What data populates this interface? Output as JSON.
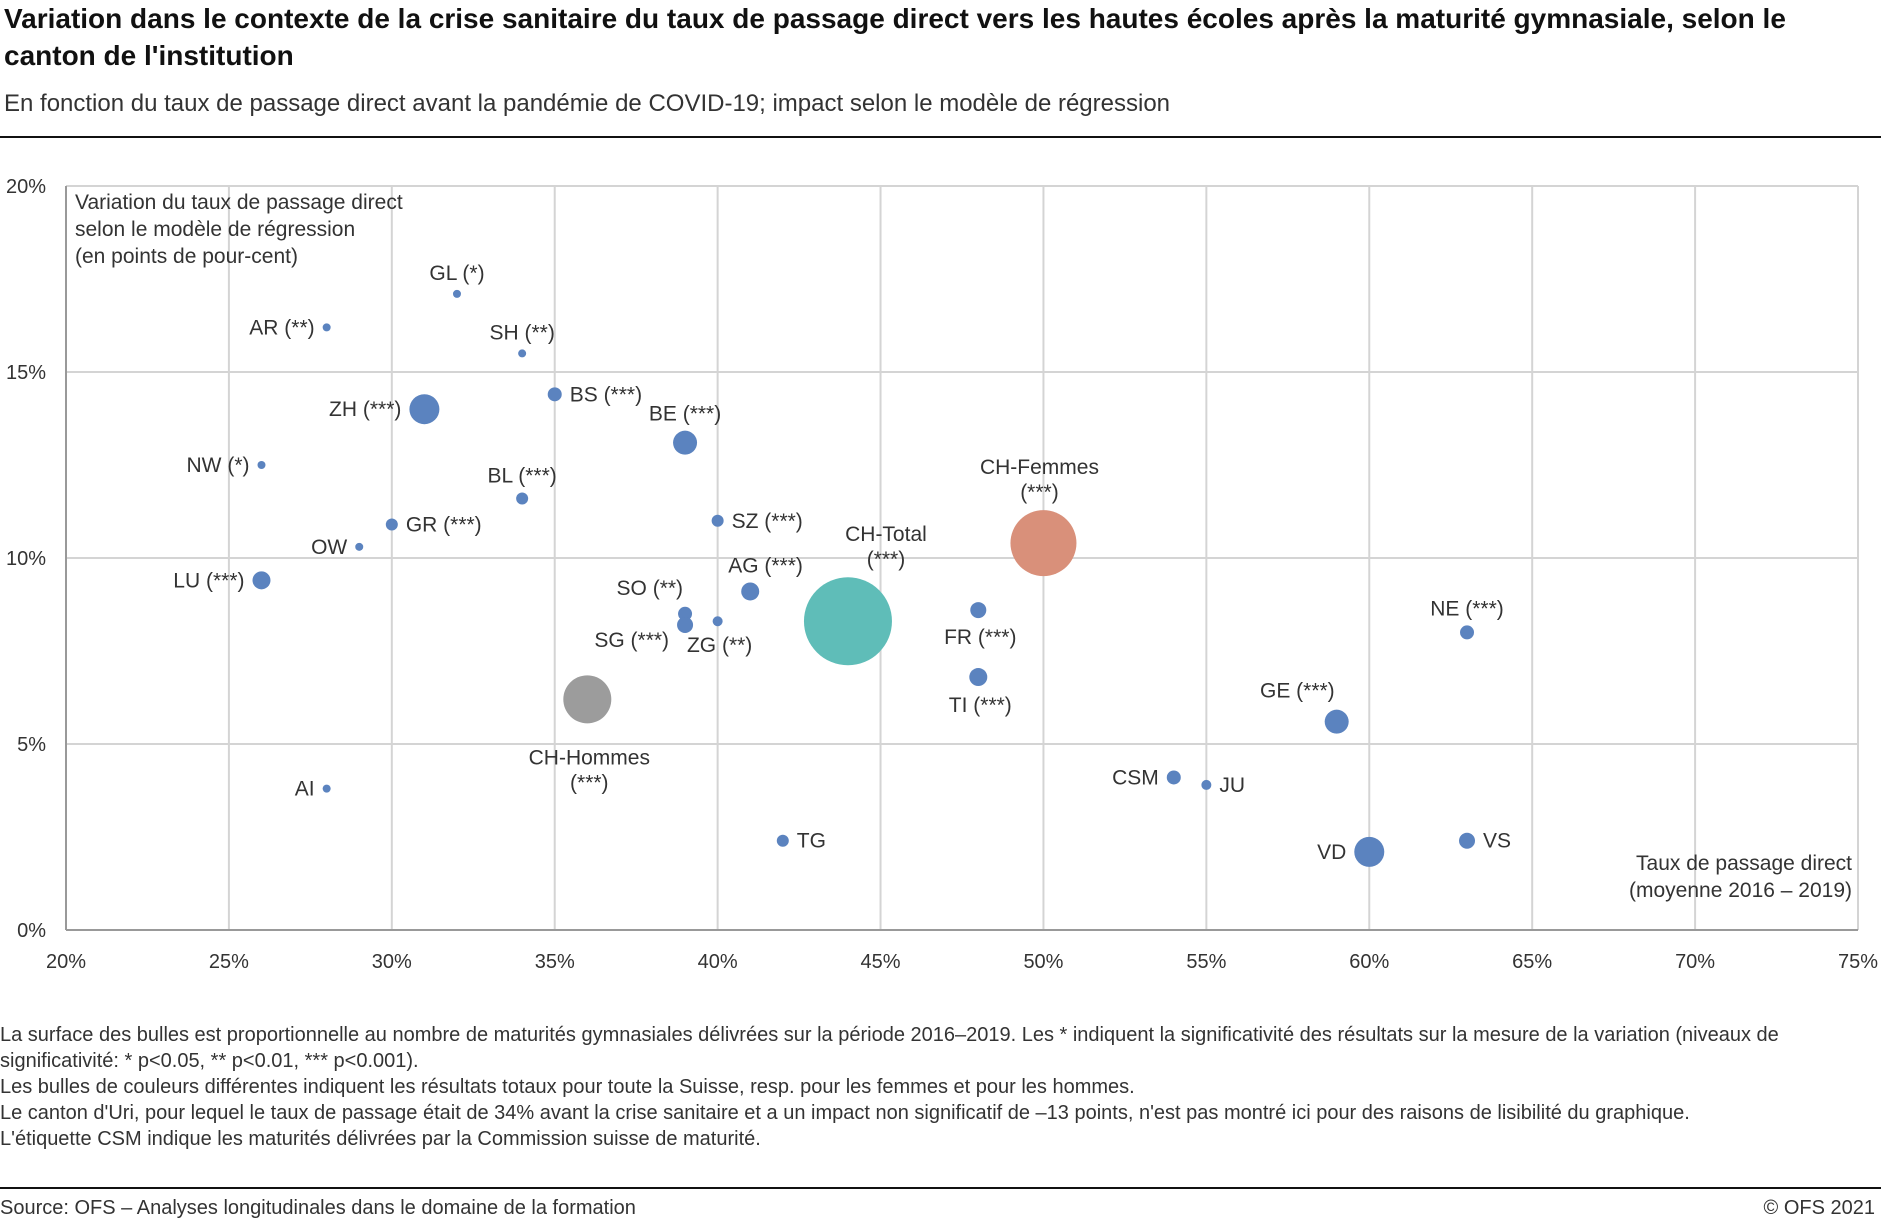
{
  "title": "Variation dans le contexte de la crise sanitaire du taux de passage direct vers les hautes écoles après la maturité gymnasiale, selon le canton de l'institution",
  "subtitle": "En fonction du taux de passage direct avant la pandémie de COVID-19; impact selon le modèle de régression",
  "notes": [
    "La surface des bulles est proportionnelle au nombre de maturités gymnasiales délivrées sur la période 2016–2019. Les * indiquent la significativité des résultats sur la mesure de la variation (niveaux de significativité: * p<0.05, ** p<0.01, *** p<0.001).",
    "Les bulles de couleurs différentes indiquent les résultats totaux pour toute la Suisse, resp. pour les femmes et pour les hommes.",
    "Le canton d'Uri, pour lequel le taux de passage était de 34% avant la crise sanitaire et a un impact non significatif de –13 points, n'est pas montré ici pour des raisons de lisibilité du graphique.",
    "L'étiquette CSM indique les maturités délivrées par la Commission suisse de maturité."
  ],
  "source": "Source: OFS – Analyses longitudinales dans le domaine de la formation",
  "copyright": "© OFS 2021",
  "chart_data": {
    "type": "scatter",
    "ylabel_lines": [
      "Variation du taux de passage direct",
      "selon le modèle de régression",
      "(en points de pour-cent)"
    ],
    "xlabel_lines": [
      "Taux de passage direct",
      "(moyenne 2016 – 2019)"
    ],
    "xlim": [
      20,
      75
    ],
    "ylim": [
      0,
      20
    ],
    "x_ticks": [
      "20%",
      "25%",
      "30%",
      "35%",
      "40%",
      "45%",
      "50%",
      "55%",
      "60%",
      "65%",
      "70%",
      "75%"
    ],
    "y_ticks": [
      "0%",
      "5%",
      "10%",
      "15%",
      "20%"
    ],
    "grid": true,
    "colors": {
      "canton": "#5b83bf",
      "total": "#5fbdb8",
      "femmes": "#d9907a",
      "hommes": "#9c9c9c",
      "grid": "#d4d4d4",
      "axis": "#999999"
    },
    "points": [
      {
        "id": "GL",
        "label": [
          "GL (*)"
        ],
        "x": 32,
        "y": 17.1,
        "r": 4,
        "group": "canton",
        "pos": "above"
      },
      {
        "id": "AR",
        "label": [
          "AR (**)"
        ],
        "x": 28,
        "y": 16.2,
        "r": 4,
        "group": "canton",
        "pos": "left"
      },
      {
        "id": "SH",
        "label": [
          "SH (**)"
        ],
        "x": 34,
        "y": 15.5,
        "r": 4,
        "group": "canton",
        "pos": "above"
      },
      {
        "id": "BS",
        "label": [
          "BS (***)"
        ],
        "x": 35,
        "y": 14.4,
        "r": 7,
        "group": "canton",
        "pos": "right"
      },
      {
        "id": "ZH",
        "label": [
          "ZH (***)"
        ],
        "x": 31,
        "y": 14.0,
        "r": 15,
        "group": "canton",
        "pos": "left"
      },
      {
        "id": "BE",
        "label": [
          "BE (***)"
        ],
        "x": 39,
        "y": 13.1,
        "r": 12,
        "group": "canton",
        "pos": "above"
      },
      {
        "id": "NW",
        "label": [
          "NW (*)"
        ],
        "x": 26,
        "y": 12.5,
        "r": 4,
        "group": "canton",
        "pos": "left"
      },
      {
        "id": "BL",
        "label": [
          "BL (***)"
        ],
        "x": 34,
        "y": 11.6,
        "r": 6,
        "group": "canton",
        "pos": "above"
      },
      {
        "id": "SZ",
        "label": [
          "SZ (***)"
        ],
        "x": 40,
        "y": 11.0,
        "r": 6,
        "group": "canton",
        "pos": "right"
      },
      {
        "id": "GR",
        "label": [
          "GR (***)"
        ],
        "x": 30,
        "y": 10.9,
        "r": 6,
        "group": "canton",
        "pos": "right"
      },
      {
        "id": "OW",
        "label": [
          "OW"
        ],
        "x": 29,
        "y": 10.3,
        "r": 4,
        "group": "canton",
        "pos": "left"
      },
      {
        "id": "LU",
        "label": [
          "LU (***)"
        ],
        "x": 26,
        "y": 9.4,
        "r": 9,
        "group": "canton",
        "pos": "left"
      },
      {
        "id": "AG",
        "label": [
          "AG (***)"
        ],
        "x": 41,
        "y": 9.1,
        "r": 9,
        "group": "canton",
        "pos": "aboveright"
      },
      {
        "id": "FR",
        "label": [
          "FR (***)"
        ],
        "x": 48,
        "y": 8.6,
        "r": 8,
        "group": "canton",
        "pos": "below"
      },
      {
        "id": "SO",
        "label": [
          "SO (**)"
        ],
        "x": 39,
        "y": 8.5,
        "r": 7,
        "group": "canton",
        "pos": "aboveleft"
      },
      {
        "id": "SG",
        "label": [
          "SG (***)"
        ],
        "x": 39,
        "y": 8.2,
        "r": 8,
        "group": "canton",
        "pos": "belowleft"
      },
      {
        "id": "ZG",
        "label": [
          "ZG (**)"
        ],
        "x": 40,
        "y": 8.3,
        "r": 5,
        "group": "canton",
        "pos": "below"
      },
      {
        "id": "NE",
        "label": [
          "NE (***)"
        ],
        "x": 63,
        "y": 8.0,
        "r": 7,
        "group": "canton",
        "pos": "above"
      },
      {
        "id": "TI",
        "label": [
          "TI (***)"
        ],
        "x": 48,
        "y": 6.8,
        "r": 9,
        "group": "canton",
        "pos": "below"
      },
      {
        "id": "GE",
        "label": [
          "GE (***)"
        ],
        "x": 59,
        "y": 5.6,
        "r": 12,
        "group": "canton",
        "pos": "aboveleft"
      },
      {
        "id": "CSM",
        "label": [
          "CSM"
        ],
        "x": 54,
        "y": 4.1,
        "r": 7,
        "group": "canton",
        "pos": "left"
      },
      {
        "id": "JU",
        "label": [
          "JU"
        ],
        "x": 55,
        "y": 3.9,
        "r": 5,
        "group": "canton",
        "pos": "right"
      },
      {
        "id": "AI",
        "label": [
          "AI"
        ],
        "x": 28,
        "y": 3.8,
        "r": 4,
        "group": "canton",
        "pos": "left"
      },
      {
        "id": "TG",
        "label": [
          "TG"
        ],
        "x": 42,
        "y": 2.4,
        "r": 6,
        "group": "canton",
        "pos": "right"
      },
      {
        "id": "VS",
        "label": [
          "VS"
        ],
        "x": 63,
        "y": 2.4,
        "r": 8,
        "group": "canton",
        "pos": "right"
      },
      {
        "id": "VD",
        "label": [
          "VD"
        ],
        "x": 60,
        "y": 2.1,
        "r": 15,
        "group": "canton",
        "pos": "left"
      },
      {
        "id": "CH-Total",
        "label": [
          "CH-Total",
          "(***)"
        ],
        "x": 44,
        "y": 8.3,
        "r": 44,
        "group": "total",
        "pos": "custom-total"
      },
      {
        "id": "CH-Femmes",
        "label": [
          "CH-Femmes",
          "(***)"
        ],
        "x": 50,
        "y": 10.4,
        "r": 33,
        "group": "femmes",
        "pos": "custom-above"
      },
      {
        "id": "CH-Hommes",
        "label": [
          "CH-Hommes",
          "(***)"
        ],
        "x": 36,
        "y": 6.2,
        "r": 24,
        "group": "hommes",
        "pos": "custom-below"
      }
    ]
  }
}
